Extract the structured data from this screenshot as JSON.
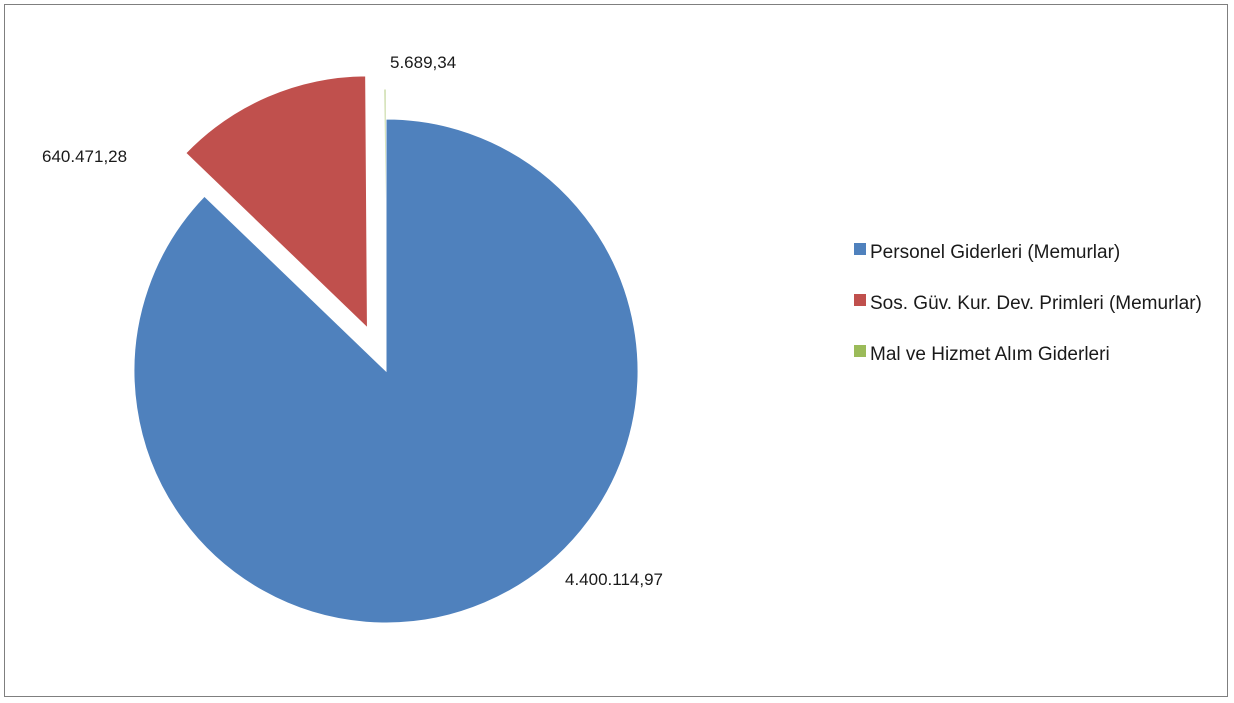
{
  "chart_data": {
    "type": "pie",
    "title": "",
    "legend_position": "right",
    "slices": [
      {
        "name": "Personel Giderleri (Memurlar)",
        "value": 4400114.97,
        "label": "4.400.114,97",
        "color": "#4f81bd",
        "exploded": false
      },
      {
        "name": "Sos. Güv. Kur. Dev. Primleri (Memurlar)",
        "value": 640471.28,
        "label": "640.471,28",
        "color": "#c0504d",
        "exploded": true
      },
      {
        "name": "Mal ve Hizmet Alım Giderleri",
        "value": 5689.34,
        "label": "5.689,34",
        "color": "#9bbb59",
        "exploded": true
      }
    ]
  }
}
